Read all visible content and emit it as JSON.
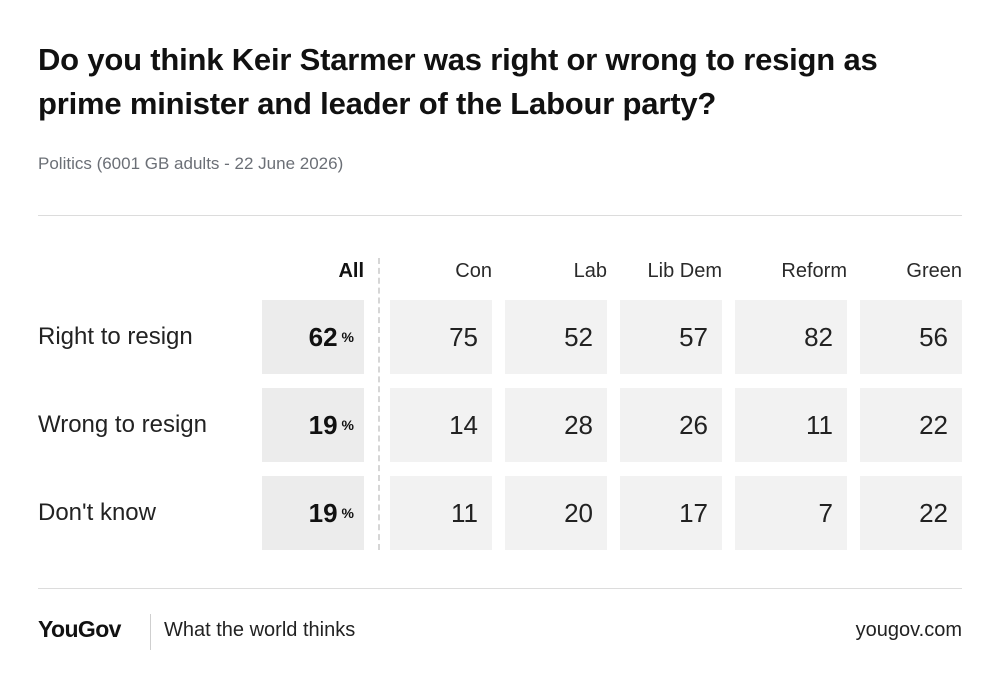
{
  "header": {
    "title": "Do you think Keir Starmer was right or wrong to resign as prime minister and leader of the Labour party?",
    "subtitle": "Politics (6001 GB adults - 22 June 2026)"
  },
  "chart_data": {
    "type": "table",
    "columns": [
      "All",
      "Con",
      "Lab",
      "Lib Dem",
      "Reform",
      "Green"
    ],
    "all_unit": "%",
    "rows": [
      {
        "label": "Right to resign",
        "all": 62,
        "values": [
          75,
          52,
          57,
          82,
          56
        ]
      },
      {
        "label": "Wrong to resign",
        "all": 19,
        "values": [
          14,
          28,
          26,
          11,
          22
        ]
      },
      {
        "label": "Don't know",
        "all": 19,
        "values": [
          11,
          20,
          17,
          7,
          22
        ]
      }
    ]
  },
  "footer": {
    "logo": "YouGov",
    "tagline": "What the world thinks",
    "url": "yougov.com"
  }
}
